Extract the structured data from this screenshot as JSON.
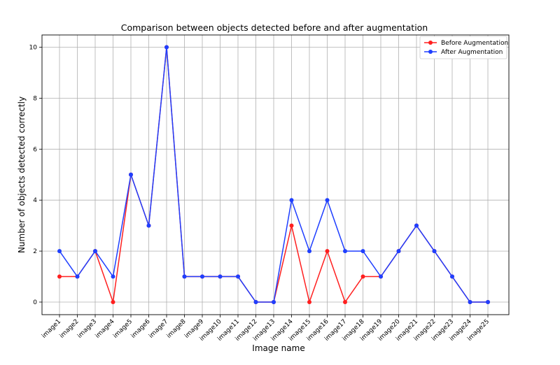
{
  "chart_data": {
    "type": "line",
    "title": "Comparison between objects detected before and after augmentation",
    "xlabel": "Image name",
    "ylabel": "Number of objects detected correctly",
    "categories": [
      "image1",
      "image2",
      "image3",
      "image4",
      "image5",
      "image6",
      "image7",
      "image8",
      "image9",
      "image10",
      "image11",
      "image12",
      "image13",
      "image14",
      "image15",
      "image16",
      "image17",
      "image18",
      "image19",
      "image20",
      "image21",
      "image22",
      "image23",
      "image24",
      "image25"
    ],
    "series": [
      {
        "name": "Before Augmentation",
        "color": "#ff1f1f",
        "values": [
          1,
          1,
          2,
          0,
          5,
          3,
          10,
          1,
          1,
          1,
          1,
          0,
          0,
          3,
          0,
          2,
          0,
          1,
          1,
          2,
          3,
          2,
          1,
          0,
          0
        ]
      },
      {
        "name": "After Augmentation",
        "color": "#1f3fff",
        "values": [
          2,
          1,
          2,
          1,
          5,
          3,
          10,
          1,
          1,
          1,
          1,
          0,
          0,
          4,
          2,
          4,
          2,
          2,
          1,
          2,
          3,
          2,
          1,
          0,
          0
        ]
      }
    ],
    "yticks": [
      0,
      2,
      4,
      6,
      8,
      10
    ],
    "ylim": [
      -0.5,
      10.5
    ],
    "grid": true,
    "legend_position": "top-right"
  }
}
